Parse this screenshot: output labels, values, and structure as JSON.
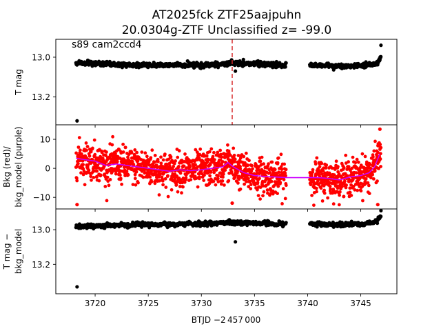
{
  "figure": {
    "title_line1": "AT2025fck  ZTF25aajpuhn",
    "title_line2": "20.0304g-ZTF Unclassified z= -99.0",
    "annotation": "s89 cam2ccd4",
    "xlabel": "BTJD −2 457 000"
  },
  "chart_data": [
    {
      "type": "scatter",
      "panel": "top",
      "ylabel": "T mag",
      "y_inverted": true,
      "xlim": [
        3716.3,
        3748.4
      ],
      "ylim": [
        12.91,
        13.34
      ],
      "x_ticks": [
        3720,
        3725,
        3730,
        3735,
        3740,
        3745
      ],
      "y_ticks": [
        13.0,
        13.2
      ],
      "y_tick_labels": [
        "13.0",
        "13.2"
      ],
      "marker_color": "#000000",
      "vline": {
        "x": 3732.9,
        "color": "#d62728",
        "style": "dashed"
      },
      "segments": [
        {
          "x_start": 3718.2,
          "x_end": 3738.0,
          "baseline": [
            [
              3718.2,
              13.03
            ],
            [
              3725,
              13.04
            ],
            [
              3730,
              13.04
            ],
            [
              3733,
              13.03
            ],
            [
              3738.0,
              13.04
            ]
          ],
          "scatter": 0.012
        },
        {
          "x_start": 3740.2,
          "x_end": 3746.9,
          "baseline": [
            [
              3740.2,
              13.04
            ],
            [
              3743,
              13.045
            ],
            [
              3745.5,
              13.04
            ],
            [
              3746.5,
              13.03
            ],
            [
              3746.9,
              13.0
            ]
          ],
          "scatter": 0.012
        }
      ],
      "outliers": [
        {
          "x": 3718.3,
          "y": 13.32
        },
        {
          "x": 3733.2,
          "y": 13.07
        },
        {
          "x": 3746.9,
          "y": 12.94
        }
      ]
    },
    {
      "type": "scatter",
      "panel": "middle",
      "ylabel_line1": "Bkg (red)/",
      "ylabel_line2": "bkg_model (purple)",
      "xlim": [
        3716.3,
        3748.4
      ],
      "ylim": [
        -14,
        15
      ],
      "x_ticks": [
        3720,
        3725,
        3730,
        3735,
        3740,
        3745
      ],
      "y_ticks": [
        10,
        0,
        -10
      ],
      "y_tick_labels": [
        "10",
        "0",
        "−10"
      ],
      "series": [
        {
          "kind": "points",
          "color": "#ff0000",
          "segments": [
            {
              "x_start": 3718.2,
              "x_end": 3738.0,
              "spread": 5.5
            },
            {
              "x_start": 3740.2,
              "x_end": 3746.9,
              "spread": 5.5
            }
          ],
          "extremes": [
            {
              "x": 3718.3,
              "y": -12.5
            },
            {
              "x": 3732.9,
              "y": -12.0
            },
            {
              "x": 3746.8,
              "y": 13.5
            },
            {
              "x": 3746.6,
              "y": -12.5
            }
          ]
        },
        {
          "kind": "line",
          "color": "#cc00ff",
          "points": [
            [
              3718.2,
              3.5
            ],
            [
              3719,
              3.0
            ],
            [
              3720,
              2.5
            ],
            [
              3721,
              1.0
            ],
            [
              3722,
              1.5
            ],
            [
              3723,
              1.0
            ],
            [
              3724,
              0.5
            ],
            [
              3725,
              0.0
            ],
            [
              3726,
              -0.5
            ],
            [
              3727,
              -1.0
            ],
            [
              3728,
              -0.5
            ],
            [
              3729,
              -0.8
            ],
            [
              3730,
              -0.5
            ],
            [
              3731,
              0.0
            ],
            [
              3732,
              0.5
            ],
            [
              3732.5,
              2.0
            ],
            [
              3733,
              0.5
            ],
            [
              3734,
              -1.5
            ],
            [
              3735,
              -2.5
            ],
            [
              3736,
              -2.8
            ],
            [
              3737,
              -3.0
            ],
            [
              3738,
              -3.2
            ],
            [
              3740.2,
              -3.2
            ],
            [
              3741,
              -3.2
            ],
            [
              3742,
              -3.5
            ],
            [
              3743,
              -4.0
            ],
            [
              3744,
              -3.0
            ],
            [
              3745,
              -2.5
            ],
            [
              3745.8,
              -1.5
            ],
            [
              3746.3,
              0.5
            ],
            [
              3746.8,
              5.0
            ]
          ]
        }
      ]
    },
    {
      "type": "scatter",
      "panel": "bottom",
      "ylabel_line1": "T mag −",
      "ylabel_line2": "bkg_model",
      "y_inverted": true,
      "xlim": [
        3716.3,
        3748.4
      ],
      "ylim": [
        12.88,
        13.37
      ],
      "x_ticks": [
        3720,
        3725,
        3730,
        3735,
        3740,
        3745
      ],
      "x_tick_labels": [
        "3720",
        "3725",
        "3730",
        "3735",
        "3740",
        "3745"
      ],
      "y_ticks": [
        13.0,
        13.2
      ],
      "y_tick_labels": [
        "13.0",
        "13.2"
      ],
      "marker_color": "#000000",
      "segments": [
        {
          "x_start": 3718.2,
          "x_end": 3738.0,
          "baseline": [
            [
              3718.2,
              12.98
            ],
            [
              3725,
              12.97
            ],
            [
              3730,
              12.965
            ],
            [
              3733,
              12.96
            ],
            [
              3738.0,
              12.965
            ]
          ],
          "scatter": 0.012
        },
        {
          "x_start": 3740.2,
          "x_end": 3746.9,
          "baseline": [
            [
              3740.2,
              12.965
            ],
            [
              3743,
              12.97
            ],
            [
              3745.5,
              12.965
            ],
            [
              3746.5,
              12.955
            ],
            [
              3746.9,
              12.92
            ]
          ],
          "scatter": 0.012
        }
      ],
      "outliers": [
        {
          "x": 3718.3,
          "y": 13.33
        },
        {
          "x": 3733.2,
          "y": 13.07
        },
        {
          "x": 3746.9,
          "y": 12.89
        }
      ]
    }
  ]
}
